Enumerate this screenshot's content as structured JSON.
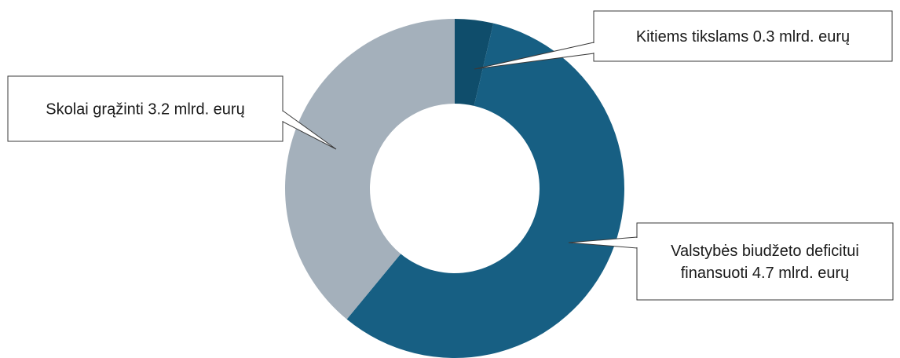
{
  "chart_data": {
    "type": "pie",
    "variant": "donut",
    "title": "",
    "unit": "mlrd. eurų",
    "slices": [
      {
        "label_lines": [
          "Kitiems tikslams 0.3 mlrd. eurų"
        ],
        "value": 0.3,
        "color": "#0f4d6b"
      },
      {
        "label_lines": [
          "Valstybės biudžeto deficitui",
          "finansuoti 4.7 mlrd. eurų"
        ],
        "value": 4.7,
        "color": "#175f83"
      },
      {
        "label_lines": [
          "Skolai grąžinti 3.2 mlrd. eurų"
        ],
        "value": 3.2,
        "color": "#a4b0bb"
      }
    ],
    "start_angle_deg": 0,
    "direction": "clockwise",
    "legend": "none",
    "labels": "callouts"
  }
}
